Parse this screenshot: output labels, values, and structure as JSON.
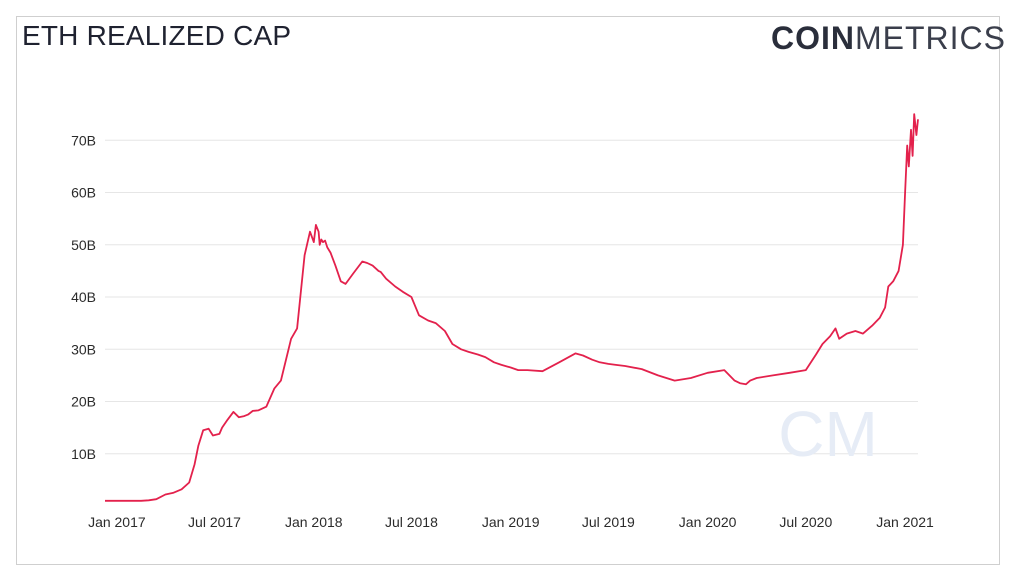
{
  "header": {
    "title": "ETH REALIZED CAP",
    "brand_bold": "COIN",
    "brand_light": "METRICS"
  },
  "colors": {
    "line": "#e3214c",
    "grid": "#e6e6e6",
    "axis": "#2b2b2b",
    "watermark": "#e6ecf6"
  },
  "chart_data": {
    "type": "line",
    "title": "ETH REALIZED CAP",
    "xlabel": "",
    "ylabel": "",
    "x_ticks": [
      "Jan 2017",
      "Jul 2017",
      "Jan 2018",
      "Jul 2018",
      "Jan 2019",
      "Jul 2019",
      "Jan 2020",
      "Jul 2020",
      "Jan 2021"
    ],
    "y_ticks": [
      "10B",
      "20B",
      "30B",
      "40B",
      "50B",
      "60B",
      "70B"
    ],
    "ylim": [
      0,
      80
    ],
    "xlim": [
      "2016-12-10",
      "2021-01-25"
    ],
    "grid": true,
    "series": [
      {
        "x": [
          "2016-12-10",
          "2017-01-15",
          "2017-02-15",
          "2017-03-01",
          "2017-03-15",
          "2017-04-01",
          "2017-04-15",
          "2017-05-01",
          "2017-05-15",
          "2017-05-25",
          "2017-06-01",
          "2017-06-10",
          "2017-06-20",
          "2017-06-28",
          "2017-07-10",
          "2017-07-15",
          "2017-07-25",
          "2017-08-05",
          "2017-08-15",
          "2017-08-25",
          "2017-09-01",
          "2017-09-10",
          "2017-09-20",
          "2017-10-05",
          "2017-10-20",
          "2017-11-01",
          "2017-11-20",
          "2017-12-01",
          "2017-12-15",
          "2017-12-25",
          "2018-01-01",
          "2018-01-05",
          "2018-01-10",
          "2018-01-12",
          "2018-01-15",
          "2018-01-18",
          "2018-01-22",
          "2018-01-26",
          "2018-02-01",
          "2018-02-10",
          "2018-02-20",
          "2018-03-01",
          "2018-03-15",
          "2018-04-01",
          "2018-04-10",
          "2018-04-20",
          "2018-05-01",
          "2018-05-05",
          "2018-05-15",
          "2018-06-01",
          "2018-06-15",
          "2018-07-01",
          "2018-07-15",
          "2018-08-01",
          "2018-08-15",
          "2018-09-01",
          "2018-09-15",
          "2018-10-01",
          "2018-10-15",
          "2018-11-01",
          "2018-11-15",
          "2018-12-01",
          "2018-12-15",
          "2019-01-01",
          "2019-01-15",
          "2019-02-01",
          "2019-03-01",
          "2019-04-01",
          "2019-05-01",
          "2019-05-15",
          "2019-06-01",
          "2019-06-15",
          "2019-07-01",
          "2019-07-15",
          "2019-08-01",
          "2019-09-01",
          "2019-10-01",
          "2019-11-01",
          "2019-12-01",
          "2020-01-01",
          "2020-02-01",
          "2020-02-20",
          "2020-03-01",
          "2020-03-12",
          "2020-03-20",
          "2020-04-01",
          "2020-05-01",
          "2020-06-01",
          "2020-07-01",
          "2020-07-20",
          "2020-08-01",
          "2020-08-15",
          "2020-08-25",
          "2020-09-01",
          "2020-09-15",
          "2020-10-01",
          "2020-10-15",
          "2020-11-01",
          "2020-11-15",
          "2020-11-25",
          "2020-12-01",
          "2020-12-10",
          "2020-12-20",
          "2020-12-28",
          "2021-01-01",
          "2021-01-05",
          "2021-01-08",
          "2021-01-12",
          "2021-01-15",
          "2021-01-18",
          "2021-01-22",
          "2021-01-25"
        ],
        "y": [
          1.0,
          1.0,
          1.0,
          1.1,
          1.3,
          2.2,
          2.5,
          3.2,
          4.5,
          8.0,
          11.5,
          14.5,
          14.8,
          13.5,
          13.8,
          15.0,
          16.5,
          18.0,
          17.0,
          17.2,
          17.5,
          18.2,
          18.3,
          19.0,
          22.5,
          24.0,
          32.0,
          34.0,
          48.0,
          52.5,
          50.5,
          53.8,
          52.5,
          50.0,
          51.0,
          50.5,
          50.8,
          49.5,
          48.5,
          46.0,
          43.0,
          42.5,
          44.5,
          46.8,
          46.5,
          46.0,
          45.0,
          44.8,
          43.5,
          42.0,
          41.0,
          40.0,
          36.5,
          35.5,
          35.0,
          33.5,
          31.0,
          30.0,
          29.5,
          29.0,
          28.5,
          27.5,
          27.0,
          26.5,
          26.0,
          26.0,
          25.8,
          27.5,
          29.2,
          28.8,
          28.0,
          27.5,
          27.2,
          27.0,
          26.8,
          26.2,
          25.0,
          24.0,
          24.5,
          25.5,
          26.0,
          24.0,
          23.5,
          23.3,
          24.0,
          24.5,
          25.0,
          25.5,
          26.0,
          29.0,
          31.0,
          32.5,
          34.0,
          32.0,
          33.0,
          33.5,
          33.0,
          34.5,
          36.0,
          38.0,
          42.0,
          43.0,
          45.0,
          50.0,
          60.0,
          69.0,
          65.0,
          72.0,
          67.0,
          75.0,
          71.0,
          74.0
        ]
      }
    ]
  },
  "watermark": "CM"
}
